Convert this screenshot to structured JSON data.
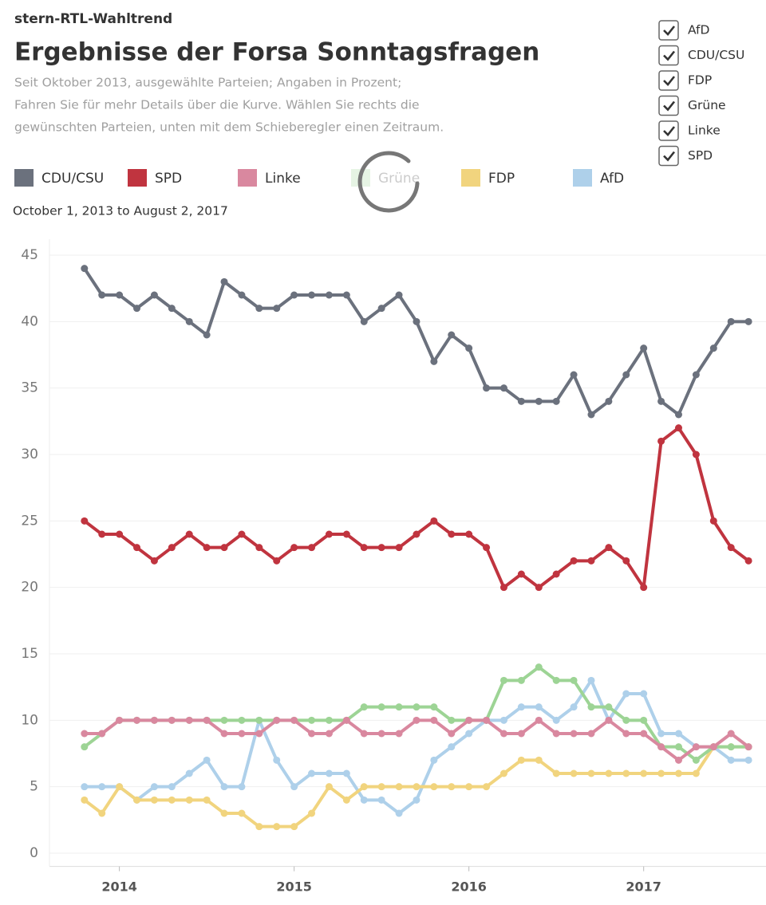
{
  "header": {
    "source": "stern-RTL-Wahltrend"
  },
  "filters": [
    {
      "label": "AfD",
      "checked": true
    },
    {
      "label": "CDU/CSU",
      "checked": true
    },
    {
      "label": "FDP",
      "checked": true
    },
    {
      "label": "Grüne",
      "checked": true
    },
    {
      "label": "Linke",
      "checked": true
    },
    {
      "label": "SPD",
      "checked": true
    }
  ],
  "chart_data": {
    "type": "line",
    "title": "Ergebnisse der Forsa Sonntagsfragen",
    "subtitle": [
      "Seit Oktober 2013, ausgewählte Parteien; Angaben in Prozent;",
      "Fahren Sie für mehr Details über die Kurve. Wählen Sie rechts die",
      "gewünschten Parteien, unten mit dem Schieberegler einen Zeitraum."
    ],
    "date_range": "October 1, 2013 to August 2, 2017",
    "x": [
      2013.8,
      2013.9,
      2014.0,
      2014.1,
      2014.2,
      2014.3,
      2014.4,
      2014.5,
      2014.6,
      2014.7,
      2014.8,
      2014.9,
      2015.0,
      2015.1,
      2015.2,
      2015.3,
      2015.4,
      2015.5,
      2015.6,
      2015.7,
      2015.8,
      2015.9,
      2016.0,
      2016.1,
      2016.2,
      2016.3,
      2016.4,
      2016.5,
      2016.6,
      2016.7,
      2016.8,
      2016.9,
      2017.0,
      2017.1,
      2017.2,
      2017.3,
      2017.4,
      2017.5,
      2017.6
    ],
    "xlim": [
      2013.6,
      2017.7
    ],
    "xticks": [
      2014,
      2015,
      2016,
      2017
    ],
    "ylim": [
      -1,
      46.5
    ],
    "yticks": [
      0,
      5,
      10,
      15,
      20,
      25,
      30,
      35,
      40,
      45
    ],
    "grid": true,
    "series": [
      {
        "name": "CDU/CSU",
        "color": "#6b717d",
        "values": [
          44,
          42,
          42,
          41,
          42,
          41,
          40,
          39,
          43,
          42,
          41,
          41,
          42,
          42,
          42,
          42,
          40,
          41,
          42,
          40,
          37,
          39,
          38,
          35,
          35,
          34,
          34,
          34,
          36,
          33,
          34,
          36,
          38,
          34,
          33,
          36,
          38,
          40,
          40
        ]
      },
      {
        "name": "SPD",
        "color": "#c0343f",
        "values": [
          25,
          24,
          24,
          23,
          22,
          23,
          24,
          23,
          23,
          24,
          23,
          22,
          23,
          23,
          24,
          24,
          23,
          23,
          23,
          24,
          25,
          24,
          24,
          23,
          20,
          21,
          20,
          21,
          22,
          22,
          23,
          22,
          20,
          31,
          32,
          30,
          25,
          23,
          22
        ]
      },
      {
        "name": "Linke",
        "color": "#d9889f",
        "values": [
          9,
          9,
          10,
          10,
          10,
          10,
          10,
          10,
          9,
          9,
          9,
          10,
          10,
          9,
          9,
          10,
          9,
          9,
          9,
          10,
          10,
          9,
          10,
          10,
          9,
          9,
          10,
          9,
          9,
          9,
          10,
          9,
          9,
          8,
          7,
          8,
          8,
          9,
          8
        ]
      },
      {
        "name": "Grüne",
        "color": "#9dd495",
        "values": [
          8,
          9,
          10,
          10,
          10,
          10,
          10,
          10,
          10,
          10,
          10,
          10,
          10,
          10,
          10,
          10,
          11,
          11,
          11,
          11,
          11,
          10,
          10,
          10,
          13,
          13,
          14,
          13,
          13,
          11,
          11,
          10,
          10,
          8,
          8,
          7,
          8,
          8,
          8
        ]
      },
      {
        "name": "FDP",
        "color": "#f1d47e",
        "values": [
          4,
          3,
          5,
          4,
          4,
          4,
          4,
          4,
          3,
          3,
          2,
          2,
          2,
          3,
          5,
          4,
          5,
          5,
          5,
          5,
          5,
          5,
          5,
          5,
          6,
          7,
          7,
          6,
          6,
          6,
          6,
          6,
          6,
          6,
          6,
          6,
          8,
          8,
          8
        ]
      },
      {
        "name": "AfD",
        "color": "#aed0ea",
        "values": [
          5,
          5,
          5,
          4,
          5,
          5,
          6,
          7,
          5,
          5,
          10,
          7,
          5,
          6,
          6,
          6,
          4,
          4,
          3,
          4,
          7,
          8,
          9,
          10,
          10,
          11,
          11,
          10,
          11,
          13,
          10,
          12,
          12,
          9,
          9,
          8,
          8,
          7,
          7
        ]
      }
    ]
  }
}
